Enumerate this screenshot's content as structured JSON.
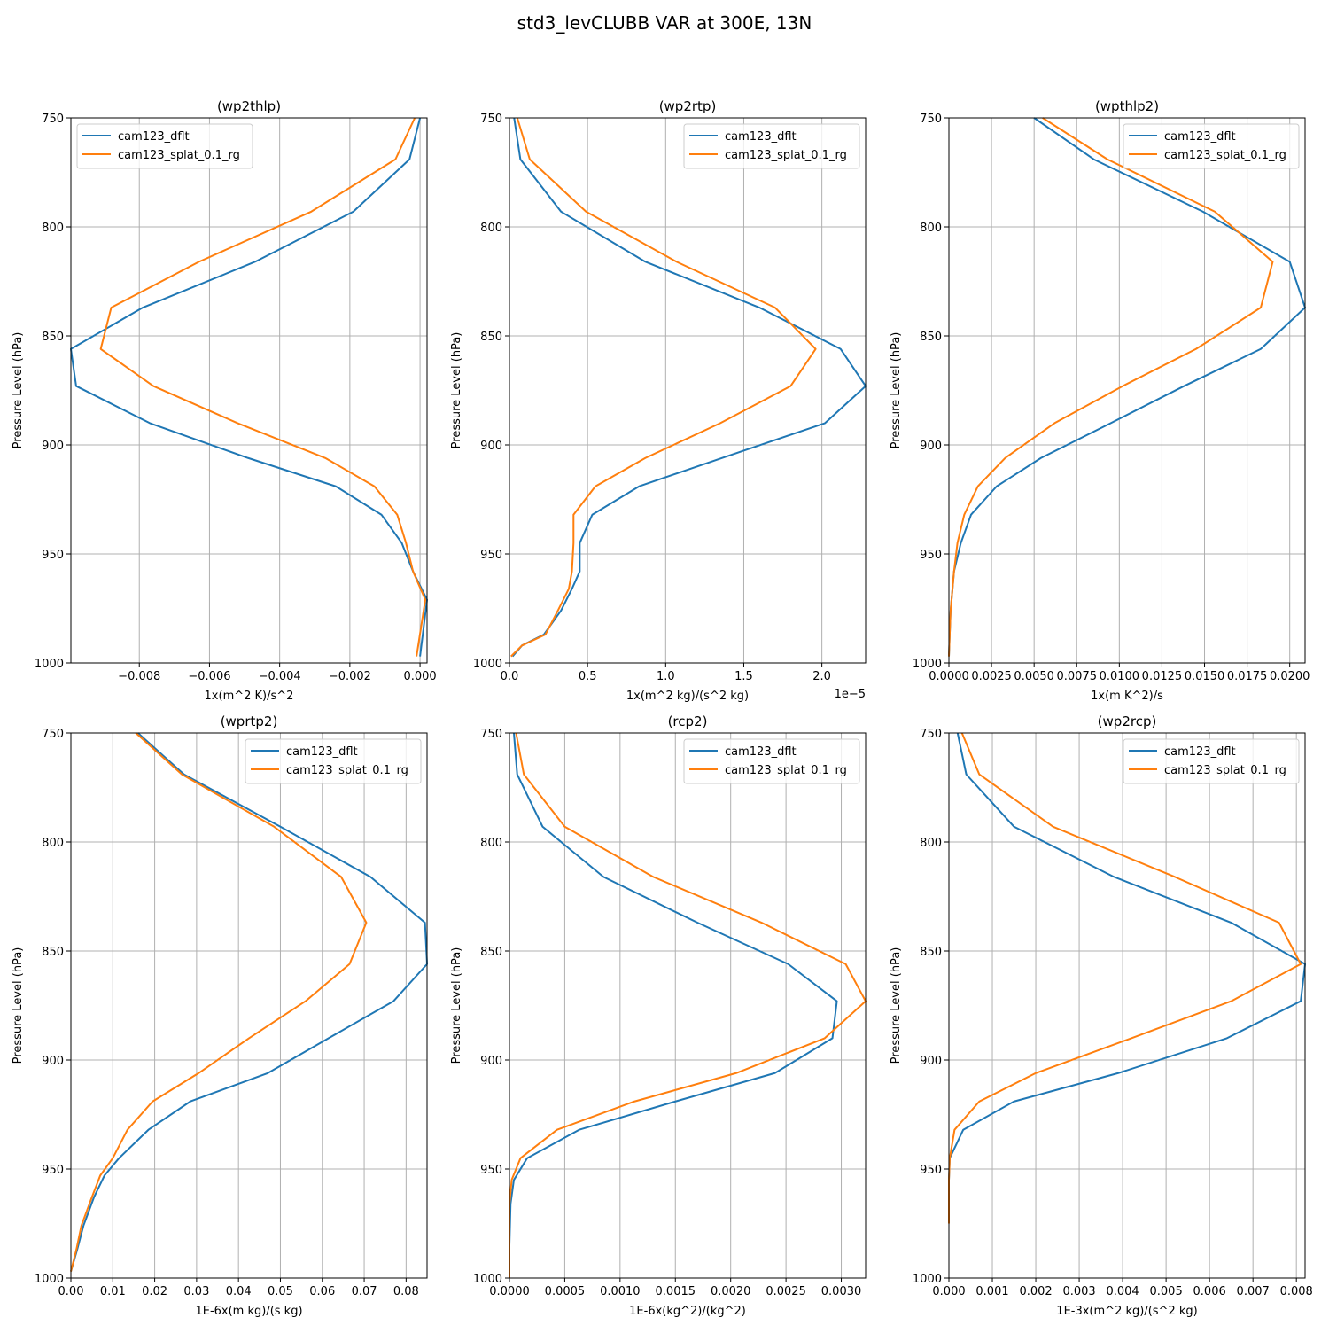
{
  "figure": {
    "suptitle": "std3_levCLUBB VAR at 300E, 13N"
  },
  "colors": {
    "dflt": "#1f77b4",
    "splat": "#ff7f0e",
    "grid": "#b0b0b0",
    "legend_border": "#cccccc"
  },
  "chart_data": [
    {
      "type": "line",
      "title": "(wp2thlp)",
      "xlabel": "1x(m^2 K)/s^2",
      "ylabel": "Pressure Level (hPa)",
      "xlim": [
        -0.00995,
        0.0002
      ],
      "ylim": [
        1000,
        750
      ],
      "yticks": [
        750,
        800,
        850,
        900,
        950,
        1000
      ],
      "xticks": [
        -0.008,
        -0.006,
        -0.004,
        -0.002,
        0.0
      ],
      "xtick_labels": [
        "−0.008",
        "−0.006",
        "−0.004",
        "−0.002",
        "0.000"
      ],
      "grid": true,
      "legend": "upper left",
      "series": [
        {
          "name": "cam123_dflt",
          "x": [
            0.0,
            -0.0003,
            -0.0019,
            -0.0047,
            -0.0079,
            -0.00995,
            -0.0098,
            -0.0077,
            -0.0049,
            -0.0024,
            -0.0011,
            -0.00052,
            -0.0002,
            0.0002,
            0.0
          ],
          "y": [
            750,
            769,
            793,
            816,
            837,
            856,
            873,
            890,
            906,
            919,
            932,
            945,
            958,
            971,
            997
          ]
        },
        {
          "name": "cam123_splat_0.1_rg",
          "x": [
            -0.00015,
            -0.0007,
            -0.0031,
            -0.0063,
            -0.0088,
            -0.0091,
            -0.0076,
            -0.0052,
            -0.0027,
            -0.0013,
            -0.00065,
            -0.0004,
            -0.0002,
            0.00015,
            -0.0001
          ],
          "y": [
            750,
            769,
            793,
            816,
            837,
            856,
            873,
            890,
            906,
            919,
            932,
            945,
            958,
            971,
            997
          ]
        }
      ]
    },
    {
      "type": "line",
      "title": "(wp2rtp)",
      "xlabel": "1x(m^2 kg)/(s^2 kg)",
      "ylabel": "Pressure Level (hPa)",
      "x_multiplier_label": "1e−5",
      "xlim": [
        0,
        2.28e-05
      ],
      "ylim": [
        1000,
        750
      ],
      "yticks": [
        750,
        800,
        850,
        900,
        950,
        1000
      ],
      "xticks": [
        0,
        5e-06,
        1e-05,
        1.5e-05,
        2e-05
      ],
      "xtick_labels": [
        "0.0",
        "0.5",
        "1.0",
        "1.5",
        "2.0"
      ],
      "grid": true,
      "legend": "upper right",
      "series": [
        {
          "name": "cam123_dflt",
          "x": [
            3e-07,
            7e-07,
            3.3e-06,
            8.7e-06,
            1.6e-05,
            2.12e-05,
            2.28e-05,
            2.02e-05,
            1.36e-05,
            8.3e-06,
            5.3e-06,
            4.5e-06,
            4.5e-06,
            4e-06,
            3.3e-06,
            2.2e-06,
            8e-07,
            2e-07
          ],
          "y": [
            750,
            769,
            793,
            816,
            837,
            856,
            873,
            890,
            906,
            919,
            932,
            945,
            958,
            966,
            976,
            987,
            992,
            997
          ]
        },
        {
          "name": "cam123_splat_0.1_rg",
          "x": [
            5e-07,
            1.3e-06,
            4.9e-06,
            1.07e-05,
            1.7e-05,
            1.96e-05,
            1.8e-05,
            1.35e-05,
            8.7e-06,
            5.5e-06,
            4.1e-06,
            4.1e-06,
            4e-06,
            3.8e-06,
            3.1e-06,
            2.3e-06,
            8e-07,
            1e-07
          ],
          "y": [
            750,
            769,
            793,
            816,
            837,
            856,
            873,
            890,
            906,
            919,
            932,
            945,
            958,
            966,
            976,
            987,
            992,
            997
          ]
        }
      ]
    },
    {
      "type": "line",
      "title": "(wpthlp2)",
      "xlabel": "1x(m K^2)/s",
      "ylabel": "Pressure Level (hPa)",
      "xlim": [
        0,
        0.0209
      ],
      "ylim": [
        1000,
        750
      ],
      "yticks": [
        750,
        800,
        850,
        900,
        950,
        1000
      ],
      "xticks": [
        0,
        0.0025,
        0.005,
        0.0075,
        0.01,
        0.0125,
        0.015,
        0.0175,
        0.02
      ],
      "xtick_labels": [
        "0.0000",
        "0.0025",
        "0.0050",
        "0.0075",
        "0.0100",
        "0.0125",
        "0.0150",
        "0.0175",
        "0.0200"
      ],
      "grid": true,
      "legend": "upper right",
      "series": [
        {
          "name": "cam123_dflt",
          "x": [
            0.005,
            0.0085,
            0.0149,
            0.02,
            0.0209,
            0.0183,
            0.0138,
            0.0095,
            0.0054,
            0.0028,
            0.0013,
            0.0007,
            0.0003,
            0.0001,
            0.0
          ],
          "y": [
            750,
            769,
            793,
            816,
            837,
            856,
            873,
            890,
            906,
            919,
            932,
            945,
            958,
            976,
            997
          ]
        },
        {
          "name": "cam123_splat_0.1_rg",
          "x": [
            0.0055,
            0.0093,
            0.0156,
            0.019,
            0.0183,
            0.0145,
            0.0102,
            0.0062,
            0.0033,
            0.0017,
            0.0009,
            0.0005,
            0.0003,
            0.0001,
            0.0
          ],
          "y": [
            750,
            769,
            793,
            816,
            837,
            856,
            873,
            890,
            906,
            919,
            932,
            945,
            958,
            976,
            997
          ]
        }
      ]
    },
    {
      "type": "line",
      "title": "(wprtp2)",
      "xlabel": "1E-6x(m kg)/(s kg)",
      "ylabel": "Pressure Level (hPa)",
      "xlim": [
        0,
        0.085
      ],
      "ylim": [
        1000,
        750
      ],
      "yticks": [
        750,
        800,
        850,
        900,
        950,
        1000
      ],
      "xticks": [
        0,
        0.01,
        0.02,
        0.03,
        0.04,
        0.05,
        0.06,
        0.07,
        0.08
      ],
      "xtick_labels": [
        "0.00",
        "0.01",
        "0.02",
        "0.03",
        "0.04",
        "0.05",
        "0.06",
        "0.07",
        "0.08"
      ],
      "grid": true,
      "legend": "upper right",
      "series": [
        {
          "name": "cam123_dflt",
          "x": [
            0.016,
            0.027,
            0.05,
            0.0715,
            0.0845,
            0.085,
            0.077,
            0.0615,
            0.047,
            0.0285,
            0.0185,
            0.0115,
            0.008,
            0.0055,
            0.003,
            0.0015,
            0.0
          ],
          "y": [
            750,
            769,
            793,
            816,
            837,
            856,
            873,
            890,
            906,
            919,
            932,
            945,
            953,
            963,
            976,
            987,
            997
          ]
        },
        {
          "name": "cam123_splat_0.1_rg",
          "x": [
            0.0155,
            0.0265,
            0.0485,
            0.0645,
            0.0705,
            0.0665,
            0.056,
            0.0425,
            0.0305,
            0.0195,
            0.0135,
            0.01,
            0.007,
            0.005,
            0.0025,
            0.0013,
            0.0
          ],
          "y": [
            750,
            769,
            793,
            816,
            837,
            856,
            873,
            890,
            906,
            919,
            932,
            945,
            953,
            963,
            976,
            987,
            997
          ]
        }
      ]
    },
    {
      "type": "line",
      "title": "(rcp2)",
      "xlabel": "1E-6x(kg^2)/(kg^2)",
      "ylabel": "Pressure Level (hPa)",
      "xlim": [
        0,
        0.00322
      ],
      "ylim": [
        1000,
        750
      ],
      "yticks": [
        750,
        800,
        850,
        900,
        950,
        1000
      ],
      "xticks": [
        0,
        0.0005,
        0.001,
        0.0015,
        0.002,
        0.0025,
        0.003
      ],
      "xtick_labels": [
        "0.0000",
        "0.0005",
        "0.0010",
        "0.0015",
        "0.0020",
        "0.0025",
        "0.0030"
      ],
      "grid": true,
      "legend": "upper right",
      "series": [
        {
          "name": "cam123_dflt",
          "x": [
            4e-05,
            7e-05,
            0.0003,
            0.00085,
            0.0017,
            0.00252,
            0.00296,
            0.00292,
            0.0024,
            0.0015,
            0.00063,
            0.00016,
            4e-05,
            1e-05,
            0.0,
            0.0
          ],
          "y": [
            750,
            769,
            793,
            816,
            837,
            856,
            873,
            890,
            906,
            919,
            932,
            945,
            955,
            966,
            985,
            1000
          ]
        },
        {
          "name": "cam123_splat_0.1_rg",
          "x": [
            6e-05,
            0.00013,
            0.0005,
            0.0013,
            0.00228,
            0.00304,
            0.00322,
            0.00285,
            0.00205,
            0.00113,
            0.00043,
            0.0001,
            2e-05,
            0.0,
            0.0,
            0.0
          ],
          "y": [
            750,
            769,
            793,
            816,
            837,
            856,
            873,
            890,
            906,
            919,
            932,
            945,
            955,
            966,
            985,
            1000
          ]
        }
      ]
    },
    {
      "type": "line",
      "title": "(wp2rcp)",
      "xlabel": "1E-3x(m^2 kg)/(s^2 kg)",
      "ylabel": "Pressure Level (hPa)",
      "xlim": [
        0,
        0.0082
      ],
      "ylim": [
        1000,
        750
      ],
      "yticks": [
        750,
        800,
        850,
        900,
        950,
        1000
      ],
      "xticks": [
        0,
        0.001,
        0.002,
        0.003,
        0.004,
        0.005,
        0.006,
        0.007,
        0.008
      ],
      "xtick_labels": [
        "0.000",
        "0.001",
        "0.002",
        "0.003",
        "0.004",
        "0.005",
        "0.006",
        "0.007",
        "0.008"
      ],
      "grid": true,
      "legend": "upper right",
      "series": [
        {
          "name": "cam123_dflt",
          "x": [
            0.0002,
            0.0004,
            0.0015,
            0.0038,
            0.0065,
            0.0082,
            0.0081,
            0.0064,
            0.0039,
            0.0015,
            0.00033,
            2e-05,
            0.0,
            0.0
          ],
          "y": [
            750,
            769,
            793,
            816,
            837,
            856,
            873,
            890,
            906,
            919,
            932,
            945,
            955,
            975
          ]
        },
        {
          "name": "cam123_splat_0.1_rg",
          "x": [
            0.0003,
            0.0007,
            0.0024,
            0.0052,
            0.0076,
            0.0081,
            0.0065,
            0.0042,
            0.002,
            0.0007,
            0.00013,
            2e-05,
            0.0,
            0.0
          ],
          "y": [
            750,
            769,
            793,
            816,
            837,
            856,
            873,
            890,
            906,
            919,
            932,
            945,
            955,
            975
          ]
        }
      ]
    }
  ]
}
